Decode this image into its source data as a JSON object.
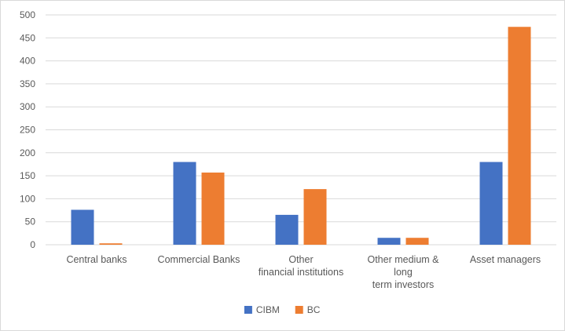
{
  "chart_data": {
    "type": "bar",
    "categories": [
      [
        "Central banks"
      ],
      [
        "Commercial Banks"
      ],
      [
        "Other",
        "financial institutions"
      ],
      [
        "Other medium &",
        "long",
        "term investors"
      ],
      [
        "Asset managers"
      ]
    ],
    "series": [
      {
        "name": "CIBM",
        "values": [
          76,
          180,
          65,
          15,
          180
        ],
        "color": "#4472c4"
      },
      {
        "name": "BC",
        "values": [
          3,
          157,
          121,
          15,
          474
        ],
        "color": "#ed7d31"
      }
    ],
    "yticks": [
      "0",
      "50",
      "100",
      "150",
      "200",
      "250",
      "300",
      "350",
      "400",
      "450",
      "500"
    ],
    "ylim": [
      0,
      500
    ],
    "grid": true,
    "legend_position": "bottom",
    "gridline_color": "#d9d9d9"
  }
}
